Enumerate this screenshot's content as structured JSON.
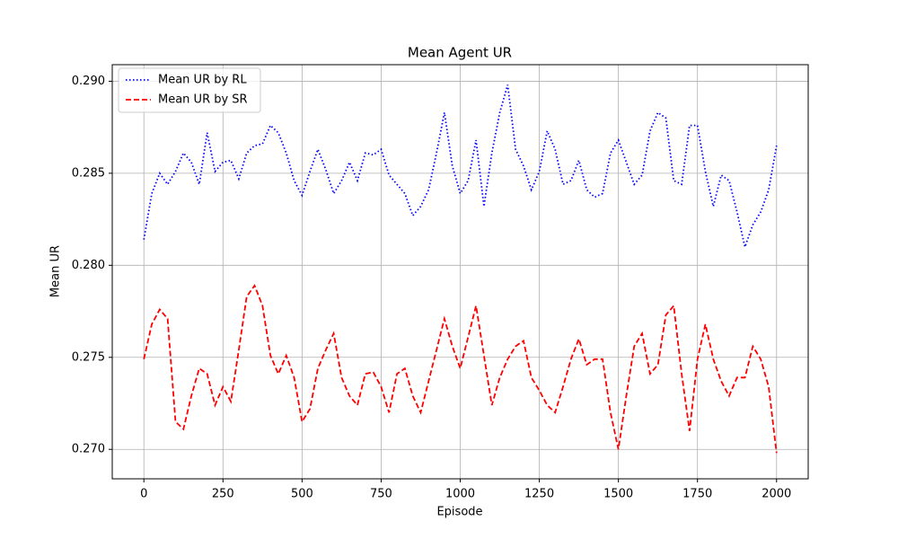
{
  "chart_data": {
    "type": "line",
    "title": "Mean Agent UR",
    "x_label": "Episode",
    "y_label": "Mean UR",
    "x": [
      0,
      25,
      50,
      75,
      100,
      125,
      150,
      175,
      200,
      225,
      250,
      275,
      300,
      325,
      350,
      375,
      400,
      425,
      450,
      475,
      500,
      525,
      550,
      575,
      600,
      625,
      650,
      675,
      700,
      725,
      750,
      775,
      800,
      825,
      850,
      875,
      900,
      925,
      950,
      975,
      1000,
      1025,
      1050,
      1075,
      1100,
      1125,
      1150,
      1175,
      1200,
      1225,
      1250,
      1275,
      1300,
      1325,
      1350,
      1375,
      1400,
      1425,
      1450,
      1475,
      1500,
      1525,
      1550,
      1575,
      1600,
      1625,
      1650,
      1675,
      1700,
      1725,
      1750,
      1775,
      1800,
      1825,
      1850,
      1875,
      1900,
      1925,
      1950,
      1975,
      2000
    ],
    "series": [
      {
        "name": "Mean UR by RL",
        "color": "#0000ff",
        "linestyle": "dotted",
        "values": [
          0.2814,
          0.2839,
          0.285,
          0.2844,
          0.2851,
          0.2861,
          0.2856,
          0.2844,
          0.2872,
          0.2851,
          0.2856,
          0.2857,
          0.2847,
          0.2861,
          0.2865,
          0.2866,
          0.2876,
          0.2872,
          0.2861,
          0.2846,
          0.2838,
          0.2851,
          0.2863,
          0.2852,
          0.2839,
          0.2846,
          0.2856,
          0.2846,
          0.2861,
          0.286,
          0.2863,
          0.2849,
          0.2844,
          0.2839,
          0.2827,
          0.2832,
          0.2841,
          0.2861,
          0.2883,
          0.2854,
          0.2839,
          0.2846,
          0.2868,
          0.2832,
          0.2861,
          0.2883,
          0.2898,
          0.2863,
          0.2854,
          0.2841,
          0.2851,
          0.2873,
          0.2863,
          0.2844,
          0.2846,
          0.2857,
          0.2841,
          0.2837,
          0.2839,
          0.2861,
          0.2868,
          0.2856,
          0.2844,
          0.2849,
          0.2873,
          0.2883,
          0.288,
          0.2846,
          0.2844,
          0.2876,
          0.2876,
          0.2851,
          0.2832,
          0.2849,
          0.2846,
          0.2829,
          0.281,
          0.2822,
          0.2829,
          0.2841,
          0.2865
        ]
      },
      {
        "name": "Mean UR by SR",
        "color": "#ff0000",
        "linestyle": "dashed",
        "values": [
          0.2749,
          0.2768,
          0.2776,
          0.2771,
          0.2715,
          0.2711,
          0.2729,
          0.2744,
          0.2741,
          0.2724,
          0.2734,
          0.2726,
          0.2754,
          0.2783,
          0.2789,
          0.2778,
          0.2751,
          0.2741,
          0.2751,
          0.2739,
          0.2715,
          0.2722,
          0.2744,
          0.2754,
          0.2763,
          0.2739,
          0.2729,
          0.2724,
          0.2741,
          0.2742,
          0.2734,
          0.272,
          0.2741,
          0.2744,
          0.2729,
          0.272,
          0.2737,
          0.2754,
          0.2771,
          0.2756,
          0.2744,
          0.2761,
          0.2778,
          0.2751,
          0.2724,
          0.2739,
          0.2749,
          0.2756,
          0.2759,
          0.2739,
          0.2732,
          0.2724,
          0.272,
          0.2734,
          0.2749,
          0.276,
          0.2746,
          0.2749,
          0.2749,
          0.272,
          0.27,
          0.2729,
          0.2756,
          0.2763,
          0.2741,
          0.2746,
          0.2773,
          0.2778,
          0.2741,
          0.271,
          0.2749,
          0.2768,
          0.2749,
          0.2737,
          0.2729,
          0.2739,
          0.2739,
          0.2756,
          0.2749,
          0.2734,
          0.2698
        ]
      }
    ],
    "xlim": [
      -100,
      2100
    ],
    "ylim": [
      0.2684,
      0.2909
    ],
    "xticks": [
      0,
      250,
      500,
      750,
      1000,
      1250,
      1500,
      1750,
      2000
    ],
    "yticks": [
      {
        "value": 0.27,
        "label": "0.270"
      },
      {
        "value": 0.275,
        "label": "0.275"
      },
      {
        "value": 0.28,
        "label": "0.280"
      },
      {
        "value": 0.285,
        "label": "0.285"
      },
      {
        "value": 0.29,
        "label": "0.290"
      }
    ],
    "grid": true,
    "legend": "upper-left"
  }
}
